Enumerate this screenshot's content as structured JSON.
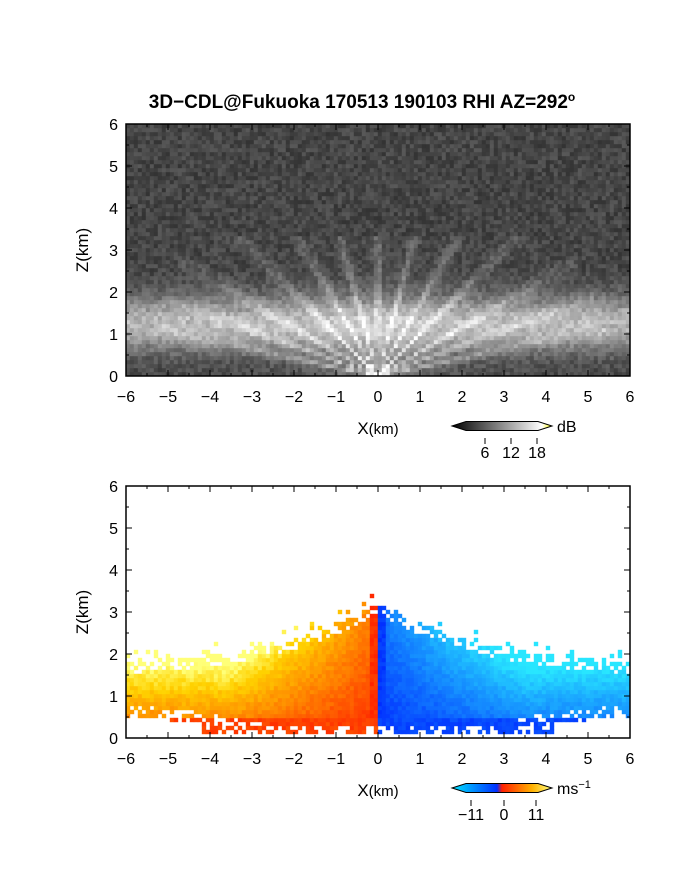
{
  "figure": {
    "title": "3D−CDL@Fukuoka 170513 190103 RHI AZ=292",
    "title_superscript": "o"
  },
  "chart_data": [
    {
      "type": "heatmap",
      "panel": "reflectivity",
      "xlabel_main": "X",
      "xlabel_unit": "(km)",
      "ylabel": "Z(km)",
      "xlim": [
        -6,
        6
      ],
      "ylim": [
        0,
        6
      ],
      "x_ticks": [
        -6,
        -5,
        -4,
        -3,
        -2,
        -1,
        0,
        1,
        2,
        3,
        4,
        5,
        6
      ],
      "x_tick_labels": [
        "−6",
        "−5",
        "−4",
        "−3",
        "−2",
        "−1",
        "0",
        "1",
        "2",
        "3",
        "4",
        "5",
        "6"
      ],
      "y_ticks": [
        0,
        1,
        2,
        3,
        4,
        5,
        6
      ],
      "y_tick_labels": [
        "0",
        "1",
        "2",
        "3",
        "4",
        "5",
        "6"
      ],
      "colorbar": {
        "unit": "dB",
        "ticks": [
          6,
          12,
          18
        ],
        "tick_labels": [
          "6",
          "12",
          "18"
        ],
        "colors": [
          "#000000",
          "#555555",
          "#aaaaaa",
          "#ffffff",
          "#ffff00"
        ]
      },
      "description_fields": {
        "background_level_db": 2,
        "bright_layer_z_km": [
          0.6,
          1.9
        ],
        "layer_peak_db": 14,
        "fan_rays_elevation_deg": [
          12,
          20,
          30,
          45,
          60,
          75,
          90,
          105,
          120,
          135,
          150,
          160,
          168
        ],
        "signal_top_km": 3.3
      }
    },
    {
      "type": "heatmap",
      "panel": "doppler_velocity",
      "xlabel_main": "X",
      "xlabel_unit": "(km)",
      "ylabel": "Z(km)",
      "xlim": [
        -6,
        6
      ],
      "ylim": [
        0,
        6
      ],
      "x_ticks": [
        -6,
        -5,
        -4,
        -3,
        -2,
        -1,
        0,
        1,
        2,
        3,
        4,
        5,
        6
      ],
      "x_tick_labels": [
        "−6",
        "−5",
        "−4",
        "−3",
        "−2",
        "−1",
        "0",
        "1",
        "2",
        "3",
        "4",
        "5",
        "6"
      ],
      "y_ticks": [
        0,
        1,
        2,
        3,
        4,
        5,
        6
      ],
      "y_tick_labels": [
        "0",
        "1",
        "2",
        "3",
        "4",
        "5",
        "6"
      ],
      "colorbar": {
        "unit": "ms",
        "unit_superscript": "−1",
        "ticks": [
          -11,
          0,
          11
        ],
        "tick_labels": [
          "−11",
          "0",
          "11"
        ],
        "colors": [
          "#00e5ff",
          "#0030ff",
          "#ff2000",
          "#ffd000",
          "#ffff80"
        ]
      },
      "data_extent": {
        "left_edge_km": -6,
        "right_edge_km": 6,
        "top_km": 3.3,
        "layer_center_km": 1.2,
        "negative_side_velocity_ms": 11,
        "positive_side_velocity_ms": -11
      }
    }
  ]
}
